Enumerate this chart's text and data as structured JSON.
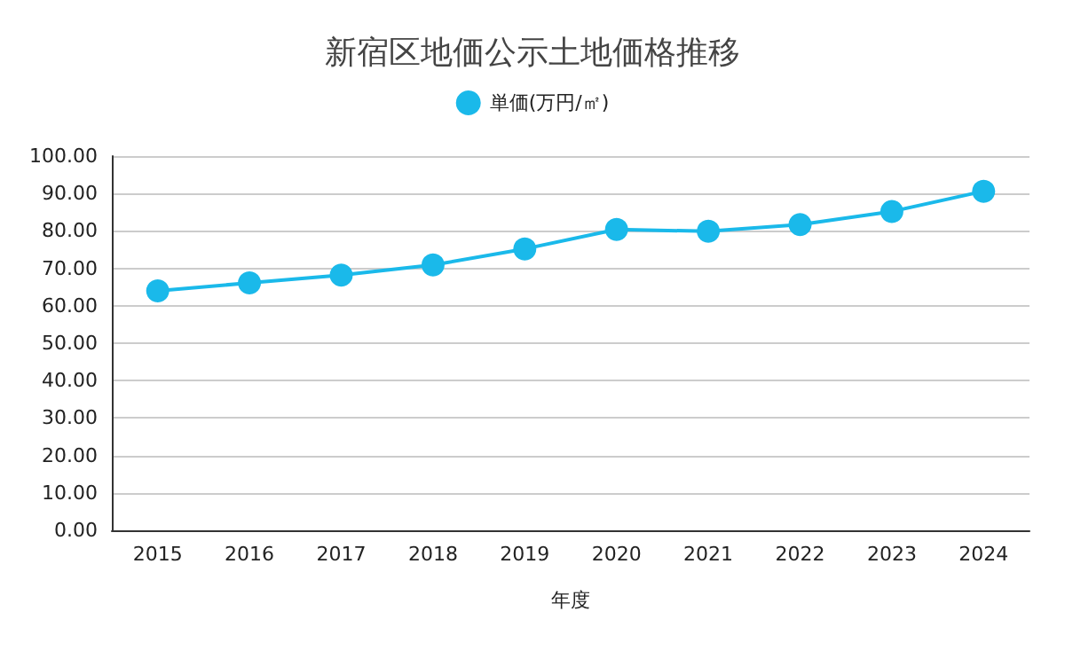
{
  "chart_data": {
    "type": "line",
    "title": "新宿区地価公示土地価格推移",
    "xlabel": "年度",
    "categories": [
      "2015",
      "2016",
      "2017",
      "2018",
      "2019",
      "2020",
      "2021",
      "2022",
      "2023",
      "2024"
    ],
    "series": [
      {
        "name": "単価(万円/㎡)",
        "color": "#1ab9ea",
        "values": [
          64.0,
          66.1,
          68.2,
          70.9,
          75.2,
          80.4,
          79.9,
          81.7,
          85.2,
          90.6
        ]
      }
    ],
    "ylim": [
      0,
      100
    ],
    "yticks": [
      {
        "value": 0,
        "label": "0.00"
      },
      {
        "value": 10,
        "label": "10.00"
      },
      {
        "value": 20,
        "label": "20.00"
      },
      {
        "value": 30,
        "label": "30.00"
      },
      {
        "value": 40,
        "label": "40.00"
      },
      {
        "value": 50,
        "label": "50.00"
      },
      {
        "value": 60,
        "label": "60.00"
      },
      {
        "value": 70,
        "label": "70.00"
      },
      {
        "value": 80,
        "label": "80.00"
      },
      {
        "value": 90,
        "label": "90.00"
      },
      {
        "value": 100,
        "label": "100.00"
      }
    ],
    "grid": "y",
    "legend": "top",
    "marker": "circle",
    "line_style": "solid"
  }
}
